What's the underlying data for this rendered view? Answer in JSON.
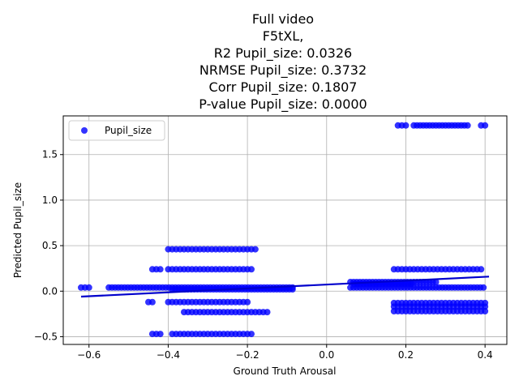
{
  "chart_data": {
    "type": "scatter",
    "title_lines": [
      "Full video",
      "F5tXL,",
      "R2 Pupil_size: 0.0326",
      "NRMSE Pupil_size: 0.3732",
      "Corr Pupil_size: 0.1807",
      "P-value Pupil_size: 0.0000"
    ],
    "xlabel": "Ground Truth Arousal",
    "ylabel": "Predicted Pupil_size",
    "xlim": [
      -0.665,
      0.455
    ],
    "ylim": [
      -0.585,
      1.925
    ],
    "x_ticks": [
      -0.6,
      -0.4,
      -0.2,
      0.0,
      0.2,
      0.4
    ],
    "x_tick_labels": [
      "−0.6",
      "−0.4",
      "−0.2",
      "0.0",
      "0.2",
      "0.4"
    ],
    "y_ticks": [
      -0.5,
      0.0,
      0.5,
      1.0,
      1.5
    ],
    "y_tick_labels": [
      "−0.5",
      "0.0",
      "0.5",
      "1.0",
      "1.5"
    ],
    "grid": true,
    "legend": {
      "position": "top-left",
      "entries": [
        "Pupil_size"
      ]
    },
    "series": [
      {
        "name": "Pupil_size",
        "color": "#0000ff",
        "clusters": [
          {
            "x": [
              -0.62,
              -0.6
            ],
            "y": 0.04,
            "step": 0.01
          },
          {
            "x": [
              -0.55,
              -0.08
            ],
            "y": 0.04,
            "step": 0.008
          },
          {
            "x": [
              -0.39,
              -0.08
            ],
            "y": 0.02,
            "step": 0.008
          },
          {
            "x": [
              -0.4,
              -0.18
            ],
            "y": 0.46,
            "step": 0.01
          },
          {
            "x": [
              -0.4,
              -0.19
            ],
            "y": 0.24,
            "step": 0.01
          },
          {
            "x": [
              -0.44,
              -0.42
            ],
            "y": 0.24,
            "step": 0.01
          },
          {
            "x": [
              -0.45,
              -0.44
            ],
            "y": -0.12,
            "step": 0.01
          },
          {
            "x": [
              -0.4,
              -0.2
            ],
            "y": -0.12,
            "step": 0.01
          },
          {
            "x": [
              -0.36,
              -0.15
            ],
            "y": -0.23,
            "step": 0.01
          },
          {
            "x": [
              -0.44,
              -0.42
            ],
            "y": -0.47,
            "step": 0.01
          },
          {
            "x": [
              -0.39,
              -0.19
            ],
            "y": -0.47,
            "step": 0.01
          },
          {
            "x": [
              0.06,
              0.4
            ],
            "y": 0.04,
            "step": 0.008
          },
          {
            "x": [
              0.06,
              0.28
            ],
            "y": 0.1,
            "step": 0.008
          },
          {
            "x": [
              0.07,
              0.22
            ],
            "y": 0.08,
            "step": 0.008
          },
          {
            "x": [
              0.17,
              0.39
            ],
            "y": 0.24,
            "step": 0.01
          },
          {
            "x": [
              0.17,
              0.4
            ],
            "y": -0.13,
            "step": 0.01
          },
          {
            "x": [
              0.17,
              0.4
            ],
            "y": -0.17,
            "step": 0.01
          },
          {
            "x": [
              0.17,
              0.4
            ],
            "y": -0.22,
            "step": 0.01
          },
          {
            "x": [
              0.18,
              0.2
            ],
            "y": 1.82,
            "step": 0.01
          },
          {
            "x": [
              0.22,
              0.36
            ],
            "y": 1.82,
            "step": 0.008
          },
          {
            "x": [
              0.39,
              0.4
            ],
            "y": 1.82,
            "step": 0.01
          }
        ]
      }
    ],
    "regression_line": {
      "x": [
        -0.62,
        0.41
      ],
      "y": [
        -0.06,
        0.16
      ],
      "color": "#0000cc"
    }
  }
}
